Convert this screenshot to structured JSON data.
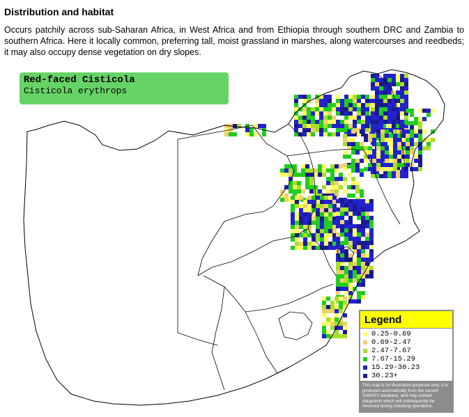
{
  "section": {
    "heading": "Distribution and habitat",
    "body": "Occurs patchily across sub-Saharan Africa, in West Africa and from Ethiopia through southern DRC and Zambia to southern Africa. Here it locally common, preferring tall, moist grassland in marshes, along watercourses and reedbeds; it may also occupy dense vegetation on dry slopes."
  },
  "map": {
    "species_common_name": "Red-faced Cisticola",
    "species_scientific_name": "Cisticola erythrops",
    "legend": {
      "title": "Legend",
      "items": [
        {
          "label": "0.25-0.69",
          "color": "#ffff66"
        },
        {
          "label": "0.69-2.47",
          "color": "#f0d070"
        },
        {
          "label": "2.47-7.67",
          "color": "#a8e028"
        },
        {
          "label": "7.67-15.29",
          "color": "#22cc22"
        },
        {
          "label": "15.29-30.23",
          "color": "#2222cc"
        },
        {
          "label": "30.23+",
          "color": "#1a1a90"
        }
      ],
      "note": "This map is for illustrative purposes only; it is produced automatically from the current SABAP2 database, and may contain datapoints which will subsequently be removed during checking operations."
    },
    "colors": {
      "species_box": "#66d366",
      "legend_title_bar": "#ffff00",
      "legend_panel": "#8c8c8c"
    }
  }
}
